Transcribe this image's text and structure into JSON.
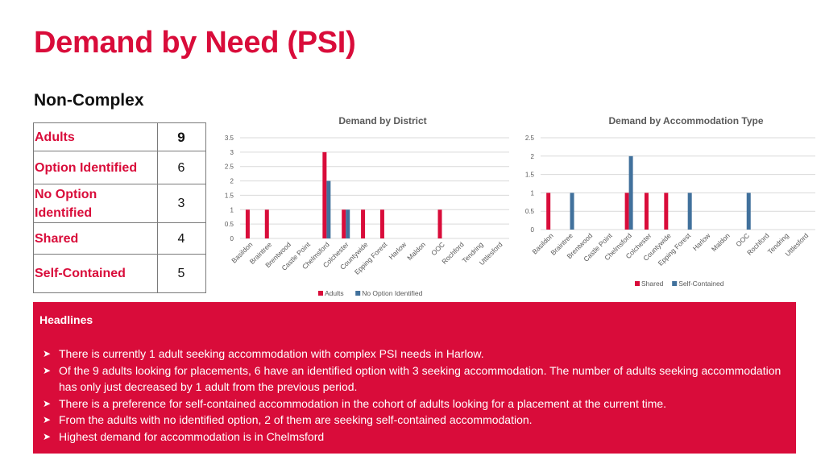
{
  "page": {
    "title": "Demand by Need (PSI)",
    "subtitle": "Non-Complex"
  },
  "summary_table": {
    "rows": [
      {
        "label": "Adults",
        "value": "9"
      },
      {
        "label": "Option Identified",
        "value": "6"
      },
      {
        "label": "No Option Identified",
        "value": "3"
      },
      {
        "label": "Shared",
        "value": "4"
      },
      {
        "label": "Self-Contained",
        "value": "5"
      }
    ]
  },
  "chart_data": [
    {
      "type": "bar",
      "title": "Demand by District",
      "categories": [
        "Basildon",
        "Braintree",
        "Brentwood",
        "Castle Point",
        "Chelmsford",
        "Colchester",
        "Countywide",
        "Epping Forest",
        "Harlow",
        "Maldon",
        "OOC",
        "Rochford",
        "Tendring",
        "Uttlesford"
      ],
      "series": [
        {
          "name": "Adults",
          "color": "#d90c3a",
          "values": [
            1,
            1,
            0,
            0,
            3,
            1,
            1,
            1,
            0,
            0,
            1,
            0,
            0,
            0
          ]
        },
        {
          "name": "No Option Identified",
          "color": "#41719c",
          "values": [
            0,
            0,
            0,
            0,
            2,
            1,
            0,
            0,
            0,
            0,
            0,
            0,
            0,
            0
          ]
        }
      ],
      "yticks": [
        "0",
        "0.5",
        "1",
        "1.5",
        "2",
        "2.5",
        "3",
        "3.5"
      ],
      "ylim": [
        0,
        3.5
      ],
      "legend": "bottom"
    },
    {
      "type": "bar",
      "title": "Demand by Accommodation Type",
      "categories": [
        "Basildon",
        "Braintree",
        "Brentwood",
        "Castle Point",
        "Chelmsford",
        "Colchester",
        "Countywide",
        "Epping Forest",
        "Harlow",
        "Maldon",
        "OOC",
        "Rochford",
        "Tendring",
        "Uttlesford"
      ],
      "series": [
        {
          "name": "Shared",
          "color": "#d90c3a",
          "values": [
            1,
            0,
            0,
            0,
            1,
            1,
            1,
            0,
            0,
            0,
            0,
            0,
            0,
            0
          ]
        },
        {
          "name": "Self-Contained",
          "color": "#41719c",
          "values": [
            0,
            1,
            0,
            0,
            2,
            0,
            0,
            1,
            0,
            0,
            1,
            0,
            0,
            0
          ]
        }
      ],
      "yticks": [
        "0",
        "0.5",
        "1",
        "1.5",
        "2",
        "2.5"
      ],
      "ylim": [
        0,
        2.5
      ],
      "legend": "bottom"
    }
  ],
  "headlines": {
    "title": "Headlines",
    "bullet_icon": "arrow-bullet-icon",
    "items": [
      "There is currently 1 adult seeking accommodation with complex PSI needs in Harlow.",
      "Of the 9 adults looking for placements, 6 have an identified option with 3 seeking accommodation. The number of adults seeking accommodation has only just decreased by 1 adult from the previous period.",
      "There is a preference for self-contained accommodation in the cohort of adults looking for a placement at the current time.",
      "From the adults with no identified option, 2 of them are seeking self-contained accommodation.",
      "Highest demand for accommodation is in Chelmsford"
    ]
  }
}
